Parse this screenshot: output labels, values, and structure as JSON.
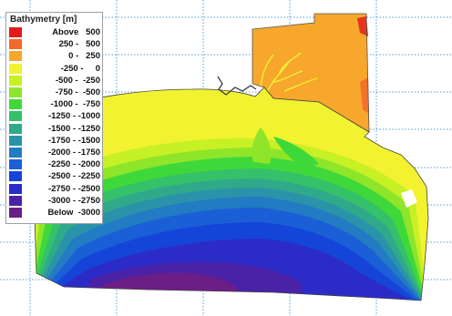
{
  "legend": {
    "title": "Bathymetry [m]",
    "classes": [
      {
        "range": "Above   500",
        "color": "#e31a1c"
      },
      {
        "range": "250 -   500",
        "color": "#f16a2a"
      },
      {
        "range": "0 -   250",
        "color": "#f6a72c"
      },
      {
        "range": "-250 -     0",
        "color": "#f2f230"
      },
      {
        "range": "-500 -  -250",
        "color": "#c7f025"
      },
      {
        "range": "-750 -  -500",
        "color": "#8ee52a"
      },
      {
        "range": "-1000 -  -750",
        "color": "#3fd83a"
      },
      {
        "range": "-1250 - -1000",
        "color": "#35c06a"
      },
      {
        "range": "-1500 - -1250",
        "color": "#2fa98a"
      },
      {
        "range": "-1750 - -1500",
        "color": "#2a93aa"
      },
      {
        "range": "-2000 - -1750",
        "color": "#227bc3"
      },
      {
        "range": "-2250 - -2000",
        "color": "#1a5fd6"
      },
      {
        "range": "-2500 - -2250",
        "color": "#1545d8"
      },
      {
        "range": "-2750 - -2500",
        "color": "#2b2cc8"
      },
      {
        "range": "-3000 - -2750",
        "color": "#4a22a8"
      },
      {
        "range": "Below  -3000",
        "color": "#6b1e86"
      }
    ]
  }
}
